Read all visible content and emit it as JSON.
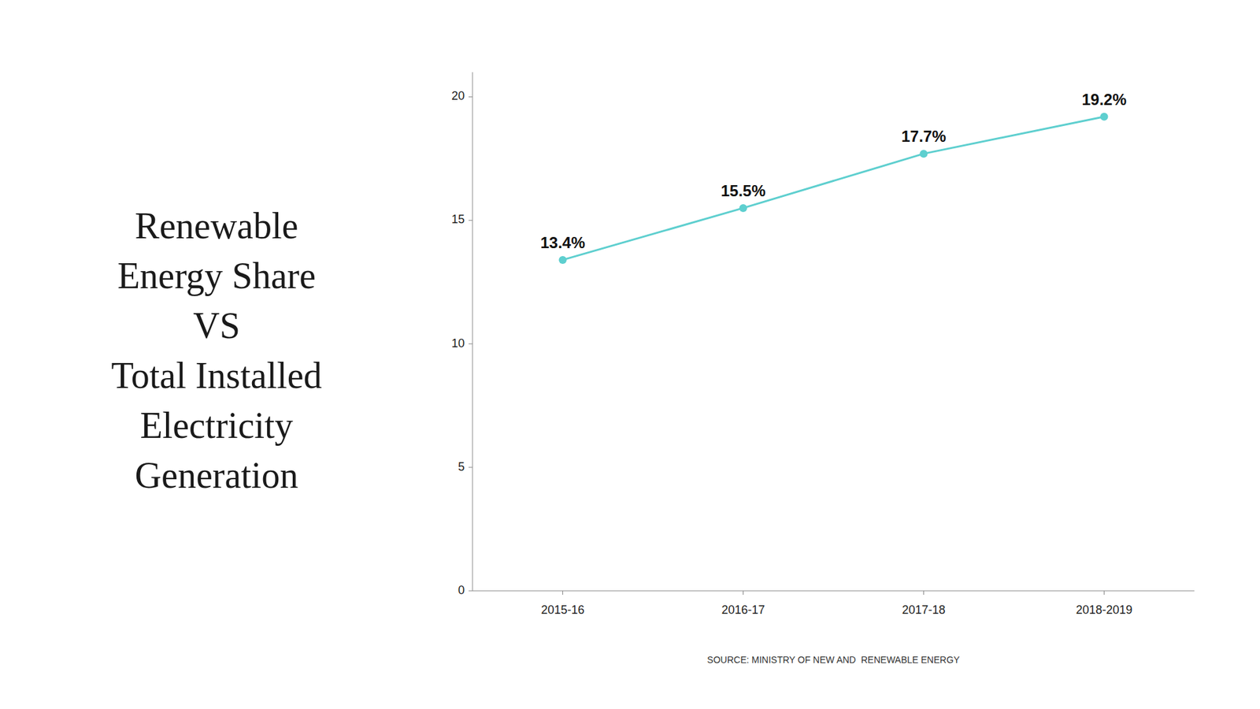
{
  "chart_data": {
    "type": "line",
    "title": [
      "Renewable",
      "Energy Share",
      "VS",
      "Total Installed",
      "Electricity",
      "Generation"
    ],
    "categories": [
      "2015-16",
      "2016-17",
      "2017-18",
      "2018-2019"
    ],
    "values": [
      13.4,
      15.5,
      17.7,
      19.2
    ],
    "value_labels": [
      "13.4%",
      "15.5%",
      "17.7%",
      "19.2%"
    ],
    "data_labels": true,
    "color": "#5ECFCF",
    "marker": "circle",
    "ylim": [
      0,
      21
    ],
    "yticks": [
      0,
      5,
      10,
      15,
      20
    ],
    "grid": false,
    "annotations": [
      "SOURCE: MINISTRY OF NEW AND  RENEWABLE ENERGY"
    ]
  }
}
